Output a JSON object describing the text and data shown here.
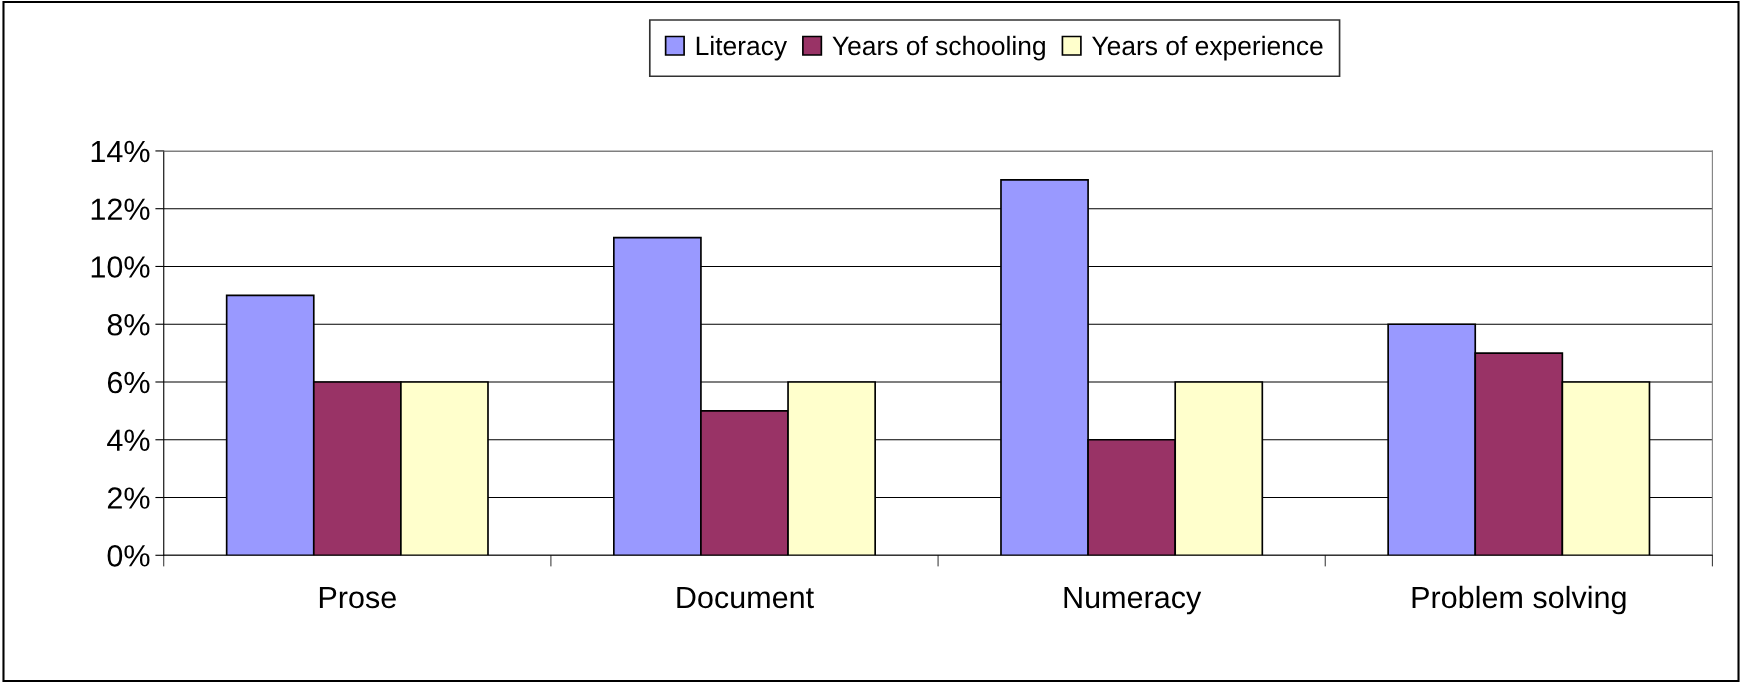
{
  "chart_data": {
    "type": "bar",
    "categories": [
      "Prose",
      "Document",
      "Numeracy",
      "Problem solving"
    ],
    "series": [
      {
        "name": "Literacy",
        "color": "#9999ff",
        "values": [
          9,
          11,
          13,
          8
        ]
      },
      {
        "name": "Years of schooling",
        "color": "#993366",
        "values": [
          6,
          5,
          4,
          7
        ]
      },
      {
        "name": "Years of experience",
        "color": "#ffffcc",
        "values": [
          6,
          6,
          6,
          6
        ]
      }
    ],
    "ylim": [
      0,
      14
    ],
    "yticks": [
      {
        "value": 0,
        "label": "0%"
      },
      {
        "value": 2,
        "label": "2%"
      },
      {
        "value": 4,
        "label": "4%"
      },
      {
        "value": 6,
        "label": "6%"
      },
      {
        "value": 8,
        "label": "8%"
      },
      {
        "value": 10,
        "label": "10%"
      },
      {
        "value": 12,
        "label": "12%"
      },
      {
        "value": 14,
        "label": "14%"
      }
    ],
    "grid": "y",
    "legend": "top"
  }
}
